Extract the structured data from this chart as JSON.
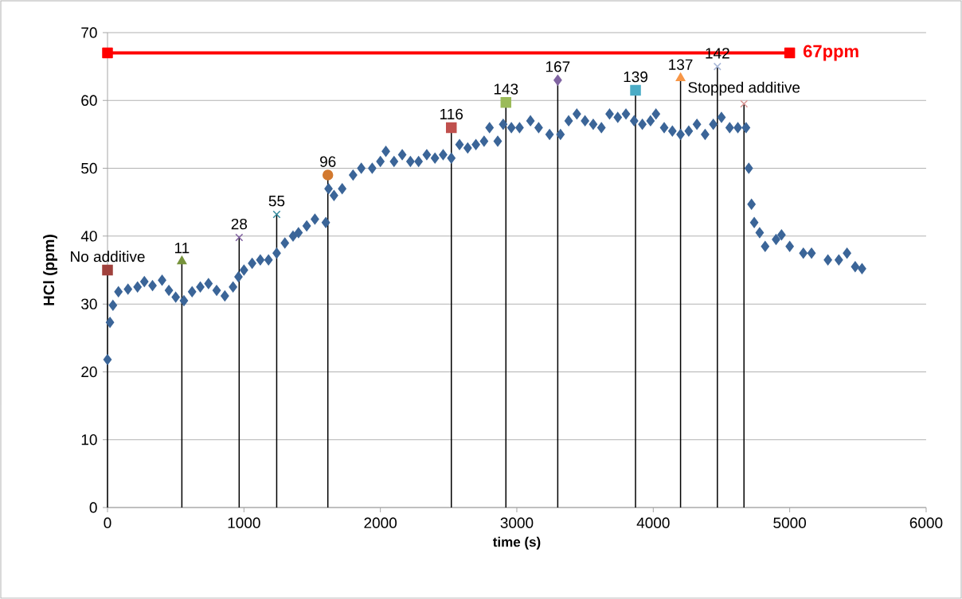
{
  "chart_data": {
    "type": "scatter",
    "xlabel": "time (s)",
    "ylabel": "HCl (ppm)",
    "xlim": [
      0,
      6000
    ],
    "xticks": [
      0,
      1000,
      2000,
      3000,
      4000,
      5000,
      6000
    ],
    "ylim": [
      0,
      70
    ],
    "yticks": [
      0,
      10,
      20,
      30,
      40,
      50,
      60,
      70
    ],
    "grid": "y",
    "legend": false,
    "annotations": [
      {
        "text": "No additive",
        "x": 0,
        "y": 35
      },
      {
        "text": "11",
        "x": 545,
        "y": 36.3
      },
      {
        "text": "28",
        "x": 965,
        "y": 39.8
      },
      {
        "text": "55",
        "x": 1240,
        "y": 43.2
      },
      {
        "text": "96",
        "x": 1615,
        "y": 49
      },
      {
        "text": "116",
        "x": 2520,
        "y": 56
      },
      {
        "text": "143",
        "x": 2920,
        "y": 59.7
      },
      {
        "text": "167",
        "x": 3300,
        "y": 63
      },
      {
        "text": "139",
        "x": 3870,
        "y": 61.5
      },
      {
        "text": "137",
        "x": 4200,
        "y": 63.3
      },
      {
        "text": "142",
        "x": 4470,
        "y": 65
      },
      {
        "text": "Stopped additive",
        "x": 4665,
        "y": 59.5
      }
    ],
    "series": [
      {
        "name": "67ppm",
        "type": "line",
        "color": "#ff0000",
        "marker": "square",
        "x": [
          0,
          5000
        ],
        "values": [
          67,
          67
        ]
      },
      {
        "color": "#3b6598",
        "marker": "diamond",
        "x": [
          0,
          18,
          40,
          80,
          150,
          220,
          270,
          330,
          400,
          450,
          500,
          560,
          620,
          680,
          740,
          800,
          860,
          920,
          960,
          1000,
          1060,
          1120,
          1180,
          1240,
          1300,
          1360,
          1400,
          1460,
          1520,
          1600,
          1620,
          1660,
          1720,
          1800,
          1860,
          1940,
          2000,
          2040,
          2100,
          2160,
          2220,
          2280,
          2340,
          2400,
          2460,
          2520,
          2580,
          2640,
          2700,
          2760,
          2800,
          2860,
          2900,
          2960,
          3020,
          3100,
          3160,
          3240,
          3320,
          3380,
          3440,
          3500,
          3560,
          3620,
          3680,
          3740,
          3800,
          3860,
          3920,
          3980,
          4020,
          4080,
          4140,
          4200,
          4260,
          4320,
          4380,
          4440,
          4500,
          4560,
          4620,
          4680,
          4700,
          4720,
          4740,
          4780,
          4820,
          4900,
          4940,
          5000,
          5100,
          5160,
          5280,
          5360,
          5420,
          5480,
          5530
        ],
        "values": [
          21.8,
          27.3,
          29.8,
          31.8,
          32.2,
          32.5,
          33.3,
          32.7,
          33.5,
          32.0,
          31.0,
          30.5,
          31.8,
          32.5,
          33.0,
          32.0,
          31.2,
          32.5,
          34.0,
          35.0,
          36.0,
          36.5,
          36.5,
          37.5,
          39.0,
          40.0,
          40.5,
          41.5,
          42.5,
          42.0,
          47.0,
          46.0,
          47.0,
          49.0,
          50.0,
          50.0,
          51.0,
          52.5,
          51.0,
          52.0,
          51.0,
          51.0,
          52.0,
          51.5,
          52.0,
          51.5,
          53.5,
          53.0,
          53.5,
          54.0,
          56.0,
          54.0,
          56.5,
          56.0,
          56.0,
          57.0,
          56.0,
          55.0,
          55.0,
          57.0,
          58.0,
          57.0,
          56.5,
          56.0,
          58.0,
          57.5,
          58.0,
          57.0,
          56.5,
          57.0,
          58.0,
          56.0,
          55.5,
          55.0,
          55.5,
          56.5,
          55.0,
          56.5,
          57.5,
          56.0,
          56.0,
          56.0,
          50.0,
          44.7,
          42.0,
          40.5,
          38.5,
          39.5,
          40.2,
          38.5,
          37.5,
          37.5,
          36.5,
          36.5,
          37.5,
          35.5,
          35.2
        ]
      },
      {
        "color": "#a0413c",
        "marker": "square",
        "x": [
          0
        ],
        "values": [
          35
        ],
        "errors": [
          [
            0,
            35
          ]
        ]
      },
      {
        "color": "#77933c",
        "marker": "triangle",
        "x": [
          545
        ],
        "values": [
          36.3
        ],
        "errors": [
          [
            0,
            36.3
          ]
        ]
      },
      {
        "color": "#7f5f9f",
        "marker": "cross",
        "x": [
          965
        ],
        "values": [
          39.8
        ],
        "errors": [
          [
            0,
            39.8
          ]
        ]
      },
      {
        "color": "#31899c",
        "marker": "cross",
        "x": [
          1240
        ],
        "values": [
          43.2
        ],
        "errors": [
          [
            0,
            43.2
          ]
        ]
      },
      {
        "color": "#d2792f",
        "marker": "circle",
        "x": [
          1615
        ],
        "values": [
          49
        ],
        "errors": [
          [
            0,
            49
          ]
        ]
      },
      {
        "color": "#c0504d",
        "marker": "square",
        "x": [
          2520
        ],
        "values": [
          56
        ],
        "errors": [
          [
            0,
            56
          ]
        ]
      },
      {
        "color": "#9bbb59",
        "marker": "square",
        "x": [
          2920
        ],
        "values": [
          59.7
        ],
        "errors": [
          [
            0,
            59.7
          ]
        ]
      },
      {
        "color": "#8064a2",
        "marker": "diamond",
        "x": [
          3300
        ],
        "values": [
          63
        ],
        "errors": [
          [
            0,
            63
          ]
        ]
      },
      {
        "color": "#4bacc6",
        "marker": "square",
        "x": [
          3870
        ],
        "values": [
          61.5
        ],
        "errors": [
          [
            0,
            61.5
          ]
        ]
      },
      {
        "color": "#f79646",
        "marker": "triangle",
        "x": [
          4200
        ],
        "values": [
          63.3
        ],
        "errors": [
          [
            0,
            63.3
          ]
        ]
      },
      {
        "color": "#a9b8d8",
        "marker": "cross",
        "x": [
          4470
        ],
        "values": [
          65
        ],
        "errors": [
          [
            0,
            65
          ]
        ]
      },
      {
        "color": "#d99694",
        "marker": "cross",
        "x": [
          4665
        ],
        "values": [
          59.5
        ],
        "errors": [
          [
            0,
            59.5
          ]
        ]
      }
    ]
  }
}
